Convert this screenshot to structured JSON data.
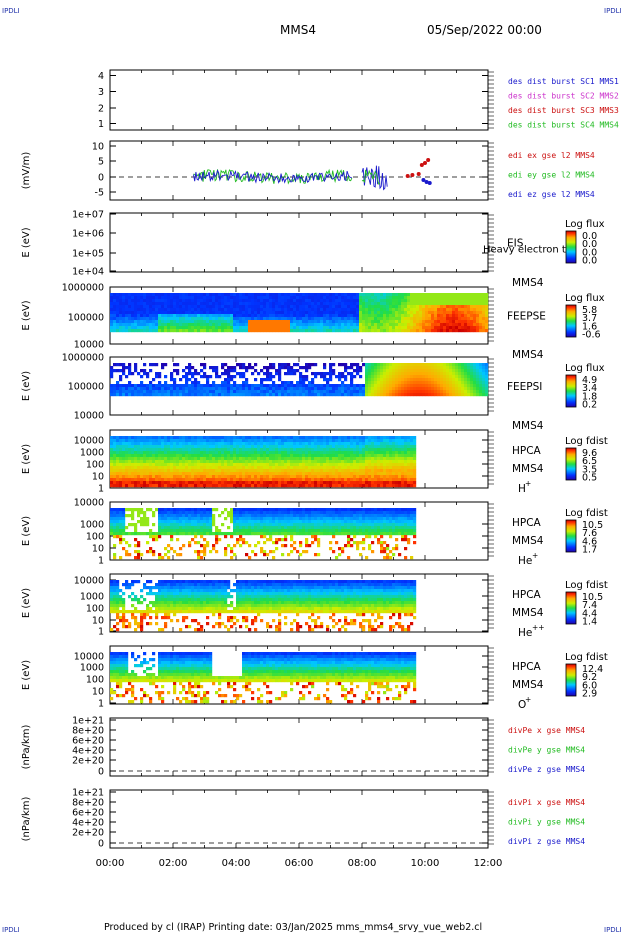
{
  "page": {
    "corner_tl": "IPDLI",
    "corner_tr": "IPDLI",
    "corner_bl": "IPDLI",
    "corner_br": "IPDLI",
    "spacecraft": "MMS4",
    "datetime": "05/Sep/2022 00:00",
    "footer": "Produced by cl (IRAP)   Printing date: 03/Jan/2025   mms_mms4_srvy_vue_web2.cl"
  },
  "chart_data": {
    "type": "stacked_timeseries",
    "x_ticks": [
      "00:00",
      "02:00",
      "04:00",
      "06:00",
      "08:00",
      "10:00",
      "12:00"
    ],
    "x_range_hours": [
      0,
      12
    ],
    "panels": [
      {
        "id": "burst",
        "type": "line",
        "ylabel": "",
        "yticks": [
          "4",
          "3",
          "2",
          "1"
        ],
        "ylim": [
          0.7,
          4.3
        ],
        "legend": [
          {
            "label": "des dist burst SC1 MMS1",
            "color": "#1a1acc"
          },
          {
            "label": "des dist burst SC2 MMS2",
            "color": "#cc33cc"
          },
          {
            "label": "des dist burst SC3 MMS3",
            "color": "#cc1111"
          },
          {
            "label": "des dist burst SC4 MMS4",
            "color": "#22bb22"
          }
        ]
      },
      {
        "id": "efield",
        "type": "line",
        "ylabel": "(mV/m)",
        "yticks": [
          "10",
          "5",
          "0",
          "-5"
        ],
        "ylim": [
          -7,
          11
        ],
        "legend": [
          {
            "label": "edi ex gse l2 MMS4",
            "color": "#cc1111"
          },
          {
            "label": "edi ey gse l2 MMS4",
            "color": "#22bb22"
          },
          {
            "label": "edi ez gse l2 MMS4",
            "color": "#1a1acc"
          }
        ]
      },
      {
        "id": "eis",
        "type": "spectrogram",
        "ylabel": "E (eV)",
        "yticks": [
          "1e+07",
          "1e+06",
          "1e+05",
          "1e+04"
        ],
        "instrument": "EIS",
        "sc": "MMS4",
        "species": "Heavy electron to",
        "cb_title": "Log flux",
        "cb_ticks": [
          "0.0",
          "0.0",
          "0.0",
          "0.0"
        ]
      },
      {
        "id": "feeps_e",
        "type": "spectrogram",
        "ylabel": "E (eV)",
        "yticks": [
          "1000000",
          "100000",
          "10000"
        ],
        "instrument": "FEEPSE",
        "sc": "MMS4",
        "cb_title": "Log flux",
        "cb_ticks": [
          "5.8",
          "3.7",
          "1.6",
          "-0.6"
        ]
      },
      {
        "id": "feeps_i",
        "type": "spectrogram",
        "ylabel": "E (eV)",
        "yticks": [
          "1000000",
          "100000",
          "10000"
        ],
        "instrument": "FEEPSI",
        "sc": "MMS4",
        "cb_title": "Log flux",
        "cb_ticks": [
          "4.9",
          "3.4",
          "1.8",
          "0.2"
        ]
      },
      {
        "id": "hpca_h",
        "type": "spectrogram",
        "ylabel": "E (eV)",
        "yticks": [
          "10000",
          "1000",
          "100",
          "10",
          "1"
        ],
        "instrument": "HPCA",
        "sc": "MMS4",
        "species": "H",
        "species_sup": "+",
        "cb_title": "Log fdist",
        "cb_ticks": [
          "9.6",
          "6.5",
          "3.5",
          "0.5"
        ]
      },
      {
        "id": "hpca_he",
        "type": "spectrogram",
        "ylabel": "E (eV)",
        "yticks": [
          "10000",
          "1000",
          "100",
          "10",
          "1"
        ],
        "instrument": "HPCA",
        "sc": "MMS4",
        "species": "He",
        "species_sup": "+",
        "cb_title": "Log fdist",
        "cb_ticks": [
          "10.5",
          "7.6",
          "4.6",
          "1.7"
        ]
      },
      {
        "id": "hpca_hepp",
        "type": "spectrogram",
        "ylabel": "E (eV)",
        "yticks": [
          "10000",
          "1000",
          "100",
          "10",
          "1"
        ],
        "instrument": "HPCA",
        "sc": "MMS4",
        "species": "He",
        "species_sup": "++",
        "cb_title": "Log fdist",
        "cb_ticks": [
          "10.5",
          "7.4",
          "4.4",
          "1.4"
        ]
      },
      {
        "id": "hpca_o",
        "type": "spectrogram",
        "ylabel": "E (eV)",
        "yticks": [
          "10000",
          "1000",
          "100",
          "10",
          "1"
        ],
        "instrument": "HPCA",
        "sc": "MMS4",
        "species": "O",
        "species_sup": "+",
        "cb_title": "Log fdist",
        "cb_ticks": [
          "12.4",
          "9.2",
          "6.0",
          "2.9"
        ]
      },
      {
        "id": "divpe",
        "type": "line",
        "ylabel": "(nPa/km)",
        "yticks": [
          "1e+21",
          "8e+20",
          "6e+20",
          "4e+20",
          "2e+20",
          "0"
        ],
        "ylim": [
          -5e+19,
          1.05e+21
        ],
        "legend": [
          {
            "label": "divPe x gse MMS4",
            "color": "#cc1111"
          },
          {
            "label": "divPe y gse MMS4",
            "color": "#22bb22"
          },
          {
            "label": "divPe z gse MMS4",
            "color": "#1a1acc"
          }
        ]
      },
      {
        "id": "divpi",
        "type": "line",
        "ylabel": "(nPa/km)",
        "yticks": [
          "1e+21",
          "8e+20",
          "6e+20",
          "4e+20",
          "2e+20",
          "0"
        ],
        "ylim": [
          -5e+19,
          1.05e+21
        ],
        "legend": [
          {
            "label": "divPi x gse MMS4",
            "color": "#cc1111"
          },
          {
            "label": "divPi y gse MMS4",
            "color": "#22bb22"
          },
          {
            "label": "divPi z gse MMS4",
            "color": "#1a1acc"
          }
        ]
      }
    ]
  }
}
